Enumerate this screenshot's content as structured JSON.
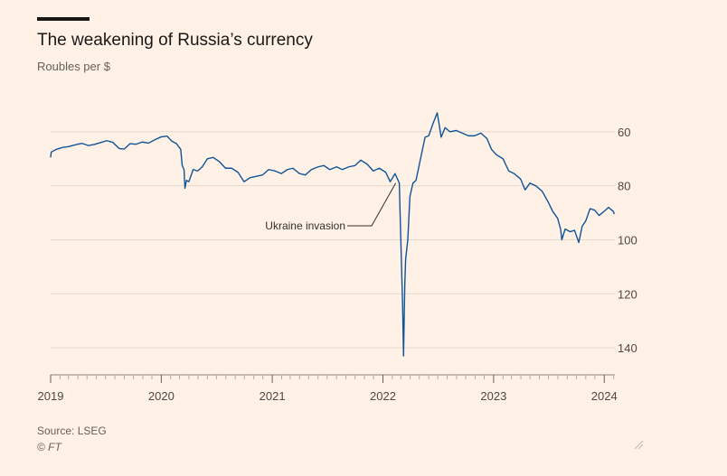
{
  "chart_data": {
    "type": "line",
    "title": "The weakening of Russia’s currency",
    "subtitle": "Roubles per $",
    "ylabel": "",
    "xlabel": "",
    "x_ticks": [
      "2019",
      "2020",
      "2021",
      "2022",
      "2023",
      "2024"
    ],
    "y_ticks": [
      60,
      80,
      100,
      120,
      140
    ],
    "ylim": [
      48,
      150
    ],
    "y_inverted": true,
    "xlim": [
      "2019-01-01",
      "2024-02-05"
    ],
    "grid": true,
    "line_color": "#0f5499",
    "annotation": {
      "text": "Ukraine invasion",
      "date": "2022-02-24",
      "value": 79
    },
    "series": [
      {
        "points": [
          [
            "2019-01-01",
            69.5
          ],
          [
            "2019-01-03",
            67.5
          ],
          [
            "2019-01-20",
            66.5
          ],
          [
            "2019-02-10",
            65.8
          ],
          [
            "2019-03-01",
            65.5
          ],
          [
            "2019-03-25",
            64.8
          ],
          [
            "2019-04-15",
            64.3
          ],
          [
            "2019-05-05",
            65.1
          ],
          [
            "2019-05-25",
            64.7
          ],
          [
            "2019-06-15",
            64.0
          ],
          [
            "2019-07-05",
            63.3
          ],
          [
            "2019-07-25",
            63.9
          ],
          [
            "2019-08-15",
            66.2
          ],
          [
            "2019-09-01",
            66.4
          ],
          [
            "2019-09-20",
            64.4
          ],
          [
            "2019-10-10",
            64.6
          ],
          [
            "2019-10-30",
            63.8
          ],
          [
            "2019-11-20",
            64.2
          ],
          [
            "2019-12-10",
            63.0
          ],
          [
            "2019-12-31",
            61.9
          ],
          [
            "2020-01-20",
            61.6
          ],
          [
            "2020-02-05",
            63.5
          ],
          [
            "2020-02-20",
            64.4
          ],
          [
            "2020-03-05",
            66.5
          ],
          [
            "2020-03-10",
            72.5
          ],
          [
            "2020-03-16",
            74.0
          ],
          [
            "2020-03-19",
            80.9
          ],
          [
            "2020-03-24",
            78.0
          ],
          [
            "2020-04-01",
            78.5
          ],
          [
            "2020-04-15",
            74.0
          ],
          [
            "2020-04-30",
            74.5
          ],
          [
            "2020-05-15",
            73.0
          ],
          [
            "2020-06-01",
            70.0
          ],
          [
            "2020-06-20",
            69.5
          ],
          [
            "2020-07-10",
            71.0
          ],
          [
            "2020-07-31",
            73.5
          ],
          [
            "2020-08-20",
            73.5
          ],
          [
            "2020-09-10",
            75.0
          ],
          [
            "2020-09-30",
            78.5
          ],
          [
            "2020-10-20",
            77.0
          ],
          [
            "2020-11-10",
            76.5
          ],
          [
            "2020-11-30",
            76.0
          ],
          [
            "2020-12-20",
            74.0
          ],
          [
            "2021-01-10",
            74.5
          ],
          [
            "2021-01-31",
            75.5
          ],
          [
            "2021-02-20",
            74.0
          ],
          [
            "2021-03-10",
            73.5
          ],
          [
            "2021-04-01",
            75.5
          ],
          [
            "2021-04-20",
            76.0
          ],
          [
            "2021-05-10",
            74.0
          ],
          [
            "2021-06-01",
            73.0
          ],
          [
            "2021-06-20",
            72.5
          ],
          [
            "2021-07-10",
            74.0
          ],
          [
            "2021-08-01",
            73.0
          ],
          [
            "2021-08-20",
            74.0
          ],
          [
            "2021-09-10",
            73.0
          ],
          [
            "2021-10-01",
            72.5
          ],
          [
            "2021-10-20",
            70.5
          ],
          [
            "2021-11-10",
            72.0
          ],
          [
            "2021-11-30",
            74.5
          ],
          [
            "2021-12-20",
            73.5
          ],
          [
            "2022-01-10",
            75.0
          ],
          [
            "2022-01-25",
            78.5
          ],
          [
            "2022-02-10",
            75.5
          ],
          [
            "2022-02-24",
            79.0
          ],
          [
            "2022-02-28",
            96.0
          ],
          [
            "2022-03-02",
            104.0
          ],
          [
            "2022-03-07",
            125.0
          ],
          [
            "2022-03-10",
            143.0
          ],
          [
            "2022-03-14",
            117.0
          ],
          [
            "2022-03-17",
            107.0
          ],
          [
            "2022-03-24",
            100.0
          ],
          [
            "2022-03-31",
            84.0
          ],
          [
            "2022-04-10",
            79.0
          ],
          [
            "2022-04-20",
            78.0
          ],
          [
            "2022-05-05",
            70.0
          ],
          [
            "2022-05-20",
            62.0
          ],
          [
            "2022-06-01",
            61.5
          ],
          [
            "2022-06-15",
            57.0
          ],
          [
            "2022-06-29",
            53.0
          ],
          [
            "2022-07-05",
            57.0
          ],
          [
            "2022-07-12",
            62.0
          ],
          [
            "2022-07-25",
            58.5
          ],
          [
            "2022-08-10",
            60.0
          ],
          [
            "2022-08-30",
            59.5
          ],
          [
            "2022-09-20",
            60.5
          ],
          [
            "2022-10-10",
            61.5
          ],
          [
            "2022-10-30",
            61.5
          ],
          [
            "2022-11-20",
            60.5
          ],
          [
            "2022-12-10",
            62.5
          ],
          [
            "2022-12-25",
            66.5
          ],
          [
            "2023-01-10",
            68.5
          ],
          [
            "2023-02-01",
            70.0
          ],
          [
            "2023-02-20",
            74.5
          ],
          [
            "2023-03-10",
            75.5
          ],
          [
            "2023-03-31",
            77.5
          ],
          [
            "2023-04-15",
            81.5
          ],
          [
            "2023-05-01",
            79.0
          ],
          [
            "2023-05-20",
            80.0
          ],
          [
            "2023-06-10",
            82.0
          ],
          [
            "2023-06-30",
            86.0
          ],
          [
            "2023-07-15",
            89.5
          ],
          [
            "2023-07-31",
            92.0
          ],
          [
            "2023-08-10",
            96.0
          ],
          [
            "2023-08-14",
            100.0
          ],
          [
            "2023-08-25",
            96.0
          ],
          [
            "2023-09-10",
            97.0
          ],
          [
            "2023-09-25",
            96.5
          ],
          [
            "2023-10-09",
            101.0
          ],
          [
            "2023-10-20",
            95.0
          ],
          [
            "2023-11-01",
            93.0
          ],
          [
            "2023-11-15",
            88.5
          ],
          [
            "2023-11-30",
            89.0
          ],
          [
            "2023-12-15",
            91.0
          ],
          [
            "2023-12-31",
            89.5
          ],
          [
            "2024-01-15",
            88.0
          ],
          [
            "2024-01-31",
            89.5
          ],
          [
            "2024-02-03",
            90.5
          ]
        ]
      }
    ]
  },
  "footer": {
    "source": "Source: LSEG",
    "copyright": "© FT"
  }
}
